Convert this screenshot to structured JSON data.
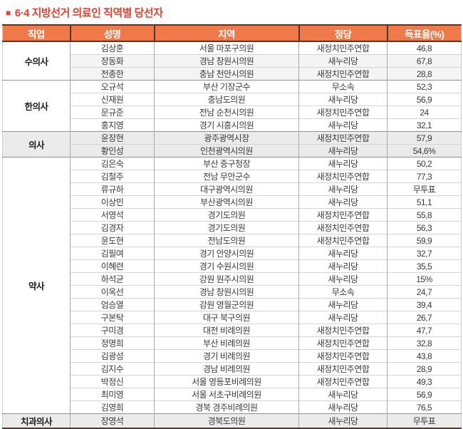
{
  "title": {
    "bullet": "■",
    "text": "6·4 지방선거 의료인 직역별 당선자"
  },
  "colors": {
    "title_red": "#e8402d",
    "header_bg": "#f0794a",
    "header_text": "#ffffff",
    "dark_border": "#4c3a30",
    "shaded_row": "#ebebeb",
    "shaded_row_light": "#f4f4f4"
  },
  "table": {
    "columns": [
      "직업",
      "성명",
      "지역",
      "정당",
      "득표율(%)"
    ],
    "groups": [
      {
        "occupation": "수의사",
        "rows": [
          {
            "name": "김상훈",
            "region": "서울 마포구의원",
            "party": "새정치민주연합",
            "rate": "46,8",
            "shade": "none"
          },
          {
            "name": "장동화",
            "region": "경남 창원시의원",
            "party": "새누리당",
            "rate": "67,8",
            "shade": "light"
          },
          {
            "name": "전종한",
            "region": "충남 천안시의원",
            "party": "새정치민주연합",
            "rate": "28,8",
            "shade": "light"
          }
        ]
      },
      {
        "occupation": "한의사",
        "rows": [
          {
            "name": "오규석",
            "region": "부산 기장군수",
            "party": "무소속",
            "rate": "52,3",
            "shade": "none"
          },
          {
            "name": "신재원",
            "region": "충남도의원",
            "party": "새누리당",
            "rate": "56,9",
            "shade": "none"
          },
          {
            "name": "문규준",
            "region": "전남 순천시의원",
            "party": "새정치민주연합",
            "rate": "24",
            "shade": "none"
          },
          {
            "name": "홍지영",
            "region": "경기 시흥시의원",
            "party": "새누리당",
            "rate": "32,1",
            "shade": "none"
          }
        ]
      },
      {
        "occupation": "의사",
        "rows": [
          {
            "name": "윤장현",
            "region": "광주광역시장",
            "party": "새정치민주연합",
            "rate": "57,9",
            "shade": "gray"
          },
          {
            "name": "황인성",
            "region": "인천광역시의원",
            "party": "새누리당",
            "rate": "54,6%",
            "shade": "gray"
          }
        ]
      },
      {
        "occupation": "약사",
        "rows": [
          {
            "name": "김은숙",
            "region": "부산 중구청장",
            "party": "새누리당",
            "rate": "50,2",
            "shade": "none"
          },
          {
            "name": "김철주",
            "region": "전남 무안군수",
            "party": "새정치민주연합",
            "rate": "77,3",
            "shade": "none"
          },
          {
            "name": "류규하",
            "region": "대구광역시의원",
            "party": "새누리당",
            "rate": "무투표",
            "shade": "none"
          },
          {
            "name": "이상민",
            "region": "부산광역시의원",
            "party": "새누리당",
            "rate": "51,1",
            "shade": "none"
          },
          {
            "name": "서영석",
            "region": "경기도의원",
            "party": "새정치민주연합",
            "rate": "55,8",
            "shade": "none"
          },
          {
            "name": "김경자",
            "region": "경기도의원",
            "party": "새정치민주연합",
            "rate": "56,3",
            "shade": "none"
          },
          {
            "name": "윤도현",
            "region": "전남도의원",
            "party": "새정치민주연합",
            "rate": "59,9",
            "shade": "none"
          },
          {
            "name": "김필여",
            "region": "경기 안양시의원",
            "party": "새누리당",
            "rate": "32,7",
            "shade": "none"
          },
          {
            "name": "이혜련",
            "region": "경기 수원시의원",
            "party": "새누리당",
            "rate": "35,5",
            "shade": "none"
          },
          {
            "name": "하석균",
            "region": "강원 원주시의원",
            "party": "새누리당",
            "rate": "15%",
            "shade": "none"
          },
          {
            "name": "이옥선",
            "region": "경남 창원시의원",
            "party": "무소속",
            "rate": "24,7",
            "shade": "none"
          },
          {
            "name": "엄승열",
            "region": "강원 영월군의원",
            "party": "새누리당",
            "rate": "39,4",
            "shade": "none"
          },
          {
            "name": "구본탁",
            "region": "대구 북구의원",
            "party": "새누리당",
            "rate": "26,7",
            "shade": "none"
          },
          {
            "name": "구미경",
            "region": "대전 비례의원",
            "party": "새정치민주연합",
            "rate": "47,7",
            "shade": "none"
          },
          {
            "name": "정명희",
            "region": "부산 비례의원",
            "party": "새정치민주연합",
            "rate": "32,8",
            "shade": "none"
          },
          {
            "name": "김광성",
            "region": "경기 비례의원",
            "party": "새정치민주연합",
            "rate": "43,8",
            "shade": "none"
          },
          {
            "name": "김지수",
            "region": "경남 비례의원",
            "party": "새정치민주연합",
            "rate": "28,9",
            "shade": "none"
          },
          {
            "name": "박정신",
            "region": "서울 영등포비례의원",
            "party": "새정치민주연합",
            "rate": "49,3",
            "shade": "none"
          },
          {
            "name": "최미영",
            "region": "서울 서초구비례의원",
            "party": "새누리당",
            "rate": "56,9",
            "shade": "none"
          },
          {
            "name": "김영희",
            "region": "경북 경주비례의원",
            "party": "새누리당",
            "rate": "76,5",
            "shade": "none"
          }
        ]
      },
      {
        "occupation": "치과의사",
        "rows": [
          {
            "name": "장영석",
            "region": "경북도의원",
            "party": "새누리당",
            "rate": "무투표",
            "shade": "gray"
          }
        ]
      }
    ]
  }
}
